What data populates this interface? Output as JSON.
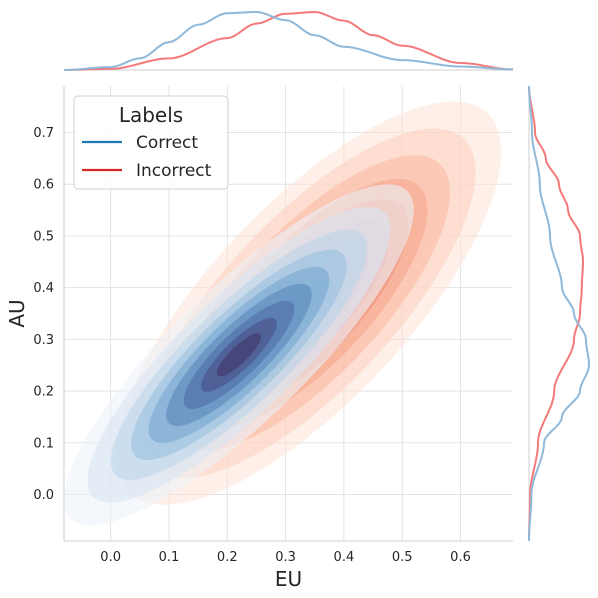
{
  "chart_data": {
    "type": "jointplot-kde",
    "xlabel": "EU",
    "ylabel": "AU",
    "xlim": [
      -0.08,
      0.69
    ],
    "ylim": [
      -0.09,
      0.79
    ],
    "xticks": [
      "0.0",
      "0.1",
      "0.2",
      "0.3",
      "0.4",
      "0.5",
      "0.6"
    ],
    "yticks": [
      "0.0",
      "0.1",
      "0.2",
      "0.3",
      "0.4",
      "0.5",
      "0.6",
      "0.7"
    ],
    "grid": true,
    "legend": {
      "title": "Labels",
      "placement": "top-left",
      "entries": [
        {
          "label": "Correct",
          "color": "#1f77b4"
        },
        {
          "label": "Incorrect",
          "color": "#d62728"
        }
      ]
    },
    "series": [
      {
        "name": "Correct",
        "colormap": "Blues",
        "marginal_color": "#8fb8d9",
        "mean_eu": 0.22,
        "mean_au": 0.27,
        "sd_eu": 0.1,
        "sd_au": 0.11,
        "correlation": 0.85,
        "eu_density": {
          "x": [
            -0.08,
            0.0,
            0.05,
            0.1,
            0.15,
            0.2,
            0.25,
            0.3,
            0.35,
            0.4,
            0.5,
            0.6,
            0.69
          ],
          "y": [
            0.0,
            0.05,
            0.2,
            0.48,
            0.78,
            0.98,
            1.0,
            0.86,
            0.6,
            0.4,
            0.17,
            0.06,
            0.01
          ]
        },
        "au_density": {
          "x": [
            -0.09,
            0.0,
            0.1,
            0.15,
            0.2,
            0.25,
            0.3,
            0.35,
            0.4,
            0.5,
            0.6,
            0.7,
            0.79
          ],
          "y": [
            0.0,
            0.04,
            0.25,
            0.55,
            0.85,
            1.0,
            0.95,
            0.75,
            0.55,
            0.35,
            0.18,
            0.05,
            0.0
          ]
        }
      },
      {
        "name": "Incorrect",
        "colormap": "Reds",
        "marginal_color": "#f47a7a",
        "mean_eu": 0.34,
        "mean_au": 0.37,
        "sd_eu": 0.11,
        "sd_au": 0.13,
        "correlation": 0.75,
        "eu_density": {
          "x": [
            -0.08,
            0.0,
            0.1,
            0.2,
            0.25,
            0.3,
            0.35,
            0.4,
            0.45,
            0.5,
            0.6,
            0.69
          ],
          "y": [
            0.0,
            0.02,
            0.2,
            0.55,
            0.8,
            0.97,
            1.0,
            0.85,
            0.6,
            0.42,
            0.12,
            0.01
          ]
        },
        "au_density": {
          "x": [
            -0.09,
            0.0,
            0.1,
            0.2,
            0.3,
            0.35,
            0.4,
            0.45,
            0.5,
            0.55,
            0.6,
            0.65,
            0.7,
            0.79
          ],
          "y": [
            0.0,
            0.02,
            0.15,
            0.42,
            0.75,
            0.85,
            0.88,
            0.9,
            0.85,
            0.65,
            0.5,
            0.28,
            0.1,
            0.0
          ]
        }
      }
    ]
  }
}
